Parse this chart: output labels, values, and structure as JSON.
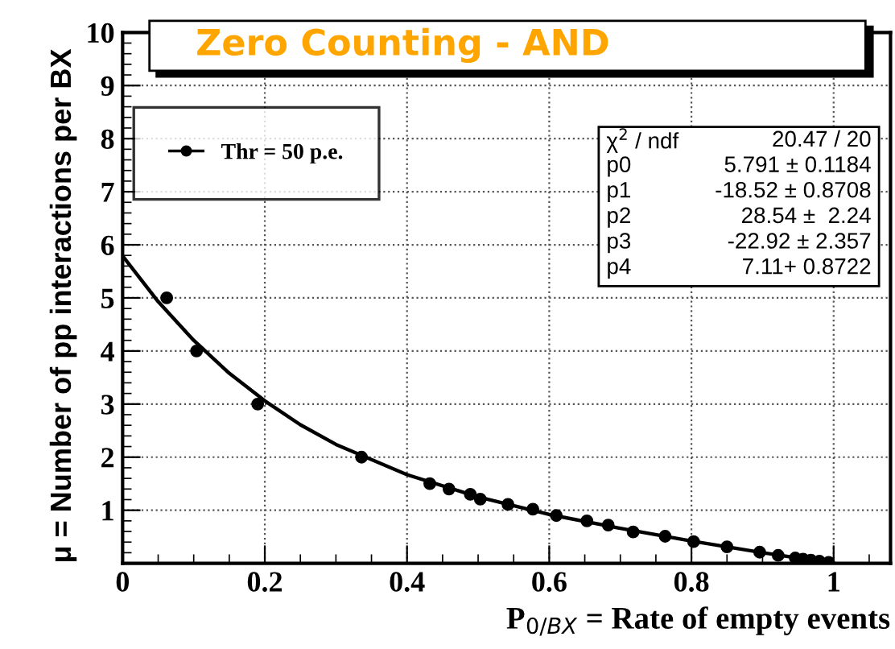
{
  "chart_data": {
    "type": "scatter",
    "title": "Zero Counting - AND",
    "xlabel": "P$_{0/BX}$ = Rate of empty events",
    "ylabel": "μ = Number of pp interactions per BX",
    "xlim": [
      0,
      1.08
    ],
    "xticks": [
      0,
      0.2,
      0.4,
      0.6,
      0.8,
      1
    ],
    "ylim": [
      0,
      10
    ],
    "yticks": [
      1,
      2,
      3,
      4,
      5,
      6,
      7,
      8,
      9,
      10
    ],
    "grid": true,
    "legend": "top left",
    "marker": "circle",
    "series": [
      {
        "name": "Thr = 50 p.e.",
        "color": "#000000",
        "x": [
          0.062,
          0.104,
          0.19,
          0.336,
          0.432,
          0.459,
          0.489,
          0.503,
          0.542,
          0.577,
          0.61,
          0.653,
          0.683,
          0.718,
          0.763,
          0.803,
          0.85,
          0.896,
          0.922,
          0.946,
          0.957,
          0.968,
          0.98,
          0.993
        ],
        "values": [
          5.0,
          4.0,
          3.0,
          2.0,
          1.5,
          1.4,
          1.3,
          1.21,
          1.11,
          1.02,
          0.9,
          0.8,
          0.72,
          0.59,
          0.51,
          0.41,
          0.31,
          0.21,
          0.15,
          0.1,
          0.08,
          0.06,
          0.04,
          0.02
        ]
      },
      {
        "type": "line",
        "color": "#000000",
        "marker": "none",
        "x": [
          0,
          0.05,
          0.1,
          0.15,
          0.2,
          0.25,
          0.3,
          0.4,
          0.5,
          0.6,
          0.7,
          0.8,
          0.9,
          1.0
        ],
        "values": [
          5.79,
          4.93,
          4.2,
          3.58,
          3.06,
          2.61,
          2.24,
          1.67,
          1.25,
          0.92,
          0.66,
          0.42,
          0.2,
          0.0
        ]
      }
    ],
    "annotations": [
      "χ$^{2}$ / ndf",
      "20.47 / 20",
      "p0",
      "5.791 ± 0.1184",
      "p1",
      "-18.52 ± 0.8708",
      "p2",
      "28.54 ±  2.24",
      "p3",
      "-22.92 ± 2.357",
      "p4",
      "7.11+ 0.8722"
    ]
  }
}
